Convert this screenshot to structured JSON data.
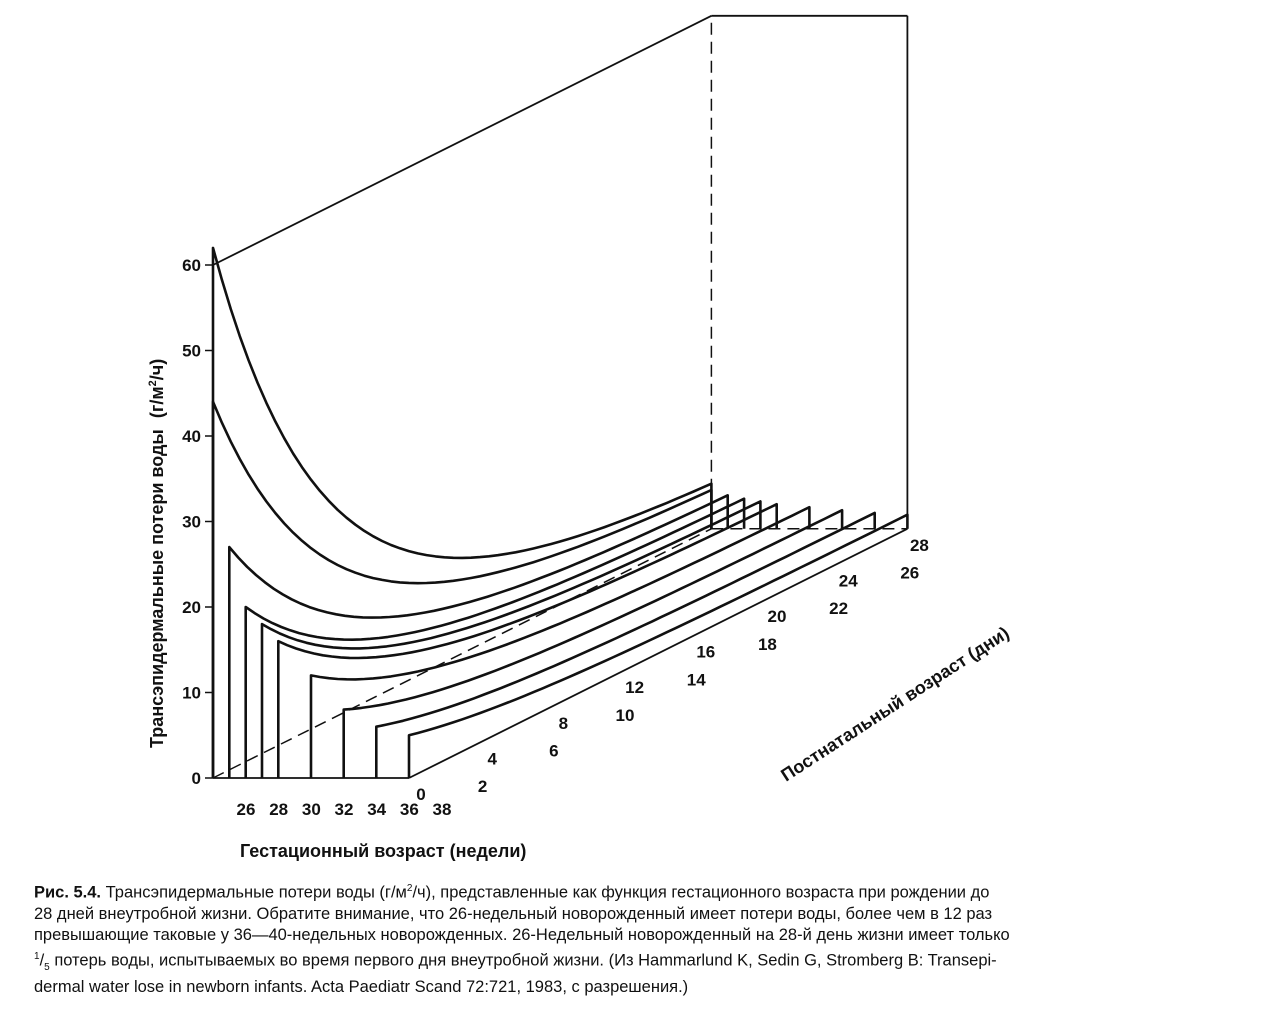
{
  "chart_data": {
    "type": "line",
    "ylabel_main": "Трансэпидермальные потери воды",
    "ylabel_unit": "(г/м",
    "ylabel_unit_sup": "2",
    "ylabel_unit_end": "/ч)",
    "xlabel": "Гестационный возраст (недели)",
    "zlabel": "Постнатальный возраст (дни)",
    "y_ticks": [
      "0",
      "10",
      "20",
      "30",
      "40",
      "50",
      "60"
    ],
    "ylim": [
      0,
      60
    ],
    "x_ticks": [
      "26",
      "28",
      "30",
      "32",
      "34",
      "36",
      "38"
    ],
    "z_ticks": [
      "0",
      "2",
      "4",
      "6",
      "8",
      "10",
      "12",
      "14",
      "16",
      "18",
      "20",
      "22",
      "24",
      "26",
      "28"
    ],
    "zlim": [
      0,
      28
    ],
    "series": [
      {
        "gestational_week": 26,
        "day0": 62,
        "day28": 4.5
      },
      {
        "gestational_week": 26,
        "day0": 44,
        "day28": 4.0
      },
      {
        "gestational_week": 27,
        "day0": 27,
        "day28": 3.6
      },
      {
        "gestational_week": 28,
        "day0": 20,
        "day28": 3.3
      },
      {
        "gestational_week": 29,
        "day0": 18,
        "day28": 3.0
      },
      {
        "gestational_week": 30,
        "day0": 16,
        "day28": 2.7
      },
      {
        "gestational_week": 32,
        "day0": 12,
        "day28": 2.4
      },
      {
        "gestational_week": 34,
        "day0": 8,
        "day28": 2.1
      },
      {
        "gestational_week": 36,
        "day0": 6,
        "day28": 1.8
      },
      {
        "gestational_week": 38,
        "day0": 5,
        "day28": 1.6
      }
    ]
  },
  "caption": {
    "fig_label": "Рис. 5.4.",
    "line1_a": "Трансэпидермальные потери воды (г/м",
    "line1_sup": "2",
    "line1_b": "/ч), представленные как функция гестационного возраста при рождении до",
    "line2": "28 дней внеутробной жизни. Обратите внимание, что 26-недельный новорожденный имеет потери воды, более чем в 12 раз",
    "line3": "превышающие таковые у 36—40-недельных новорожденных. 26-Недельный новорожденный на 28-й день жизни имеет только",
    "line4_sup": "1",
    "line4_sub": "5",
    "line4": "потерь воды, испытываемых во время первого дня внеутробной жизни. (Из Hammarlund K, Sedin G, Stromberg B: Transepi-",
    "line5": "dermal water lose in newborn infants. Acta Paediatr Scand 72:721, 1983, с разрешения.)"
  }
}
